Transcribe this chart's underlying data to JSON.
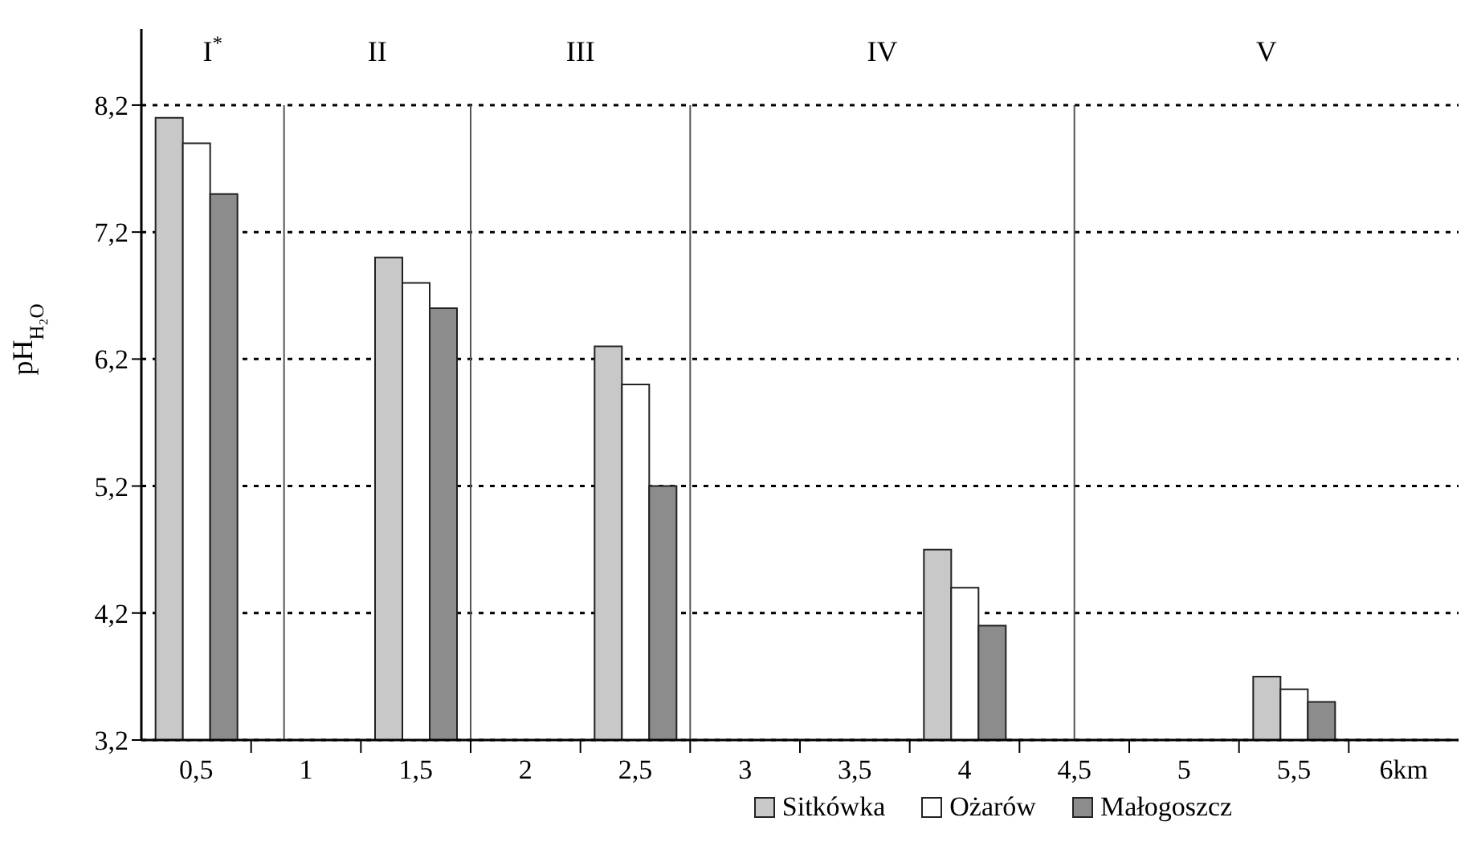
{
  "chart_data": {
    "type": "bar",
    "ylabel": "pH$_{H₂O}$",
    "x": [
      0.5,
      1.5,
      2.5,
      4,
      5.5
    ],
    "series": [
      {
        "name": "Sitkówka",
        "color": "#c8c8c8",
        "values": [
          8.1,
          7.0,
          6.3,
          4.7,
          3.7
        ]
      },
      {
        "name": "Ożarów",
        "color": "#ffffff",
        "values": [
          7.9,
          6.8,
          6.0,
          4.4,
          3.6
        ]
      },
      {
        "name": "Małogoszcz",
        "color": "#8c8c8c",
        "values": [
          7.5,
          6.6,
          5.2,
          4.1,
          3.5
        ]
      }
    ],
    "xlim": [
      0.25,
      6.25
    ],
    "xticks": [
      {
        "value": 0.5,
        "label": "0,5"
      },
      {
        "value": 0.75,
        "label": null
      },
      {
        "value": 1,
        "label": "1"
      },
      {
        "value": 1.25,
        "label": null
      },
      {
        "value": 1.5,
        "label": "1,5"
      },
      {
        "value": 1.75,
        "label": null
      },
      {
        "value": 2,
        "label": "2"
      },
      {
        "value": 2.25,
        "label": null
      },
      {
        "value": 2.5,
        "label": "2,5"
      },
      {
        "value": 2.75,
        "label": null
      },
      {
        "value": 3,
        "label": "3"
      },
      {
        "value": 3.25,
        "label": null
      },
      {
        "value": 3.5,
        "label": "3,5"
      },
      {
        "value": 3.75,
        "label": null
      },
      {
        "value": 4,
        "label": "4"
      },
      {
        "value": 4.25,
        "label": null
      },
      {
        "value": 4.5,
        "label": "4,5"
      },
      {
        "value": 4.75,
        "label": null
      },
      {
        "value": 5,
        "label": "5"
      },
      {
        "value": 5.25,
        "label": null
      },
      {
        "value": 5.5,
        "label": "5,5"
      },
      {
        "value": 5.75,
        "label": null
      },
      {
        "value": 6,
        "label": "6km"
      }
    ],
    "ylim": [
      3.2,
      8.8
    ],
    "yticks": [
      {
        "value": 3.2,
        "label": "3,2"
      },
      {
        "value": 4.2,
        "label": "4,2"
      },
      {
        "value": 5.2,
        "label": "5,2"
      },
      {
        "value": 6.2,
        "label": "6,2"
      },
      {
        "value": 7.2,
        "label": "7,2"
      },
      {
        "value": 8.2,
        "label": "8,2"
      }
    ],
    "ref_lines": [
      {
        "axis": "x",
        "value": 0.9,
        "color": "#555555"
      },
      {
        "axis": "x",
        "value": 1.75,
        "color": "#555555"
      },
      {
        "axis": "x",
        "value": 2.75,
        "color": "#555555"
      },
      {
        "axis": "x",
        "value": 4.5,
        "color": "#555555"
      }
    ],
    "annotations": [
      "I$^{*}$",
      "II",
      "III",
      "IV",
      "V"
    ],
    "grid": "y",
    "legend": "bottom"
  }
}
